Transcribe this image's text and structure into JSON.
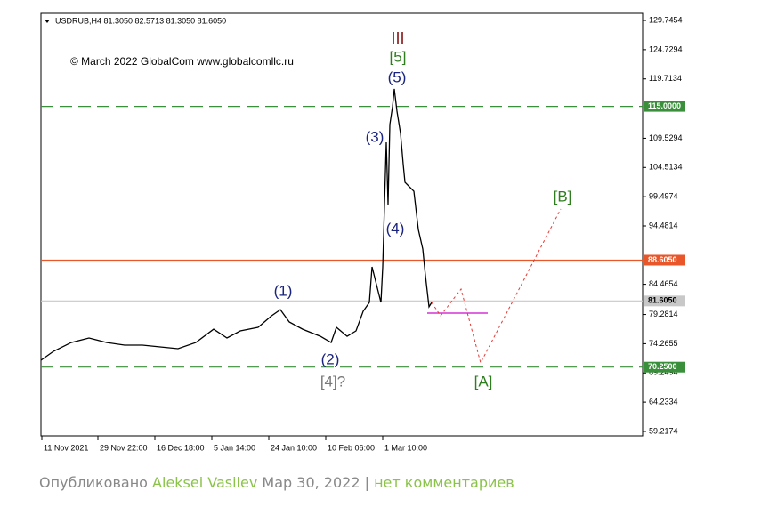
{
  "chart_data": {
    "type": "line",
    "title": "USDRUB,H4 81.3050 82.5713 81.3050 81.6050",
    "subtitle": "© March 2022 GlobalCom www.globalcomllc.ru",
    "xlim": [
      0,
      676
    ],
    "ylim": [
      58.45,
      130.97
    ],
    "xticks": [
      {
        "value": 1,
        "label": "11 Nov 2021"
      },
      {
        "value": 64,
        "label": "29 Nov 22:00"
      },
      {
        "value": 128,
        "label": "16 Dec 18:00"
      },
      {
        "value": 192,
        "label": "5 Jan 14:00"
      },
      {
        "value": 256,
        "label": "24 Jan 10:00"
      },
      {
        "value": 320,
        "label": "10 Feb 06:00"
      },
      {
        "value": 384,
        "label": "1 Mar 10:00"
      }
    ],
    "yticks": [
      129.7454,
      124.7294,
      119.7134,
      109.5294,
      104.5134,
      99.4974,
      94.4814,
      84.4654,
      79.2814,
      74.2655,
      69.2494,
      64.2334,
      59.2174
    ],
    "series": [
      {
        "color": "#000000",
        "style": "solid",
        "x": [
          0,
          14,
          34,
          54,
          74,
          94,
          114,
          134,
          154,
          174,
          194,
          209,
          224,
          244,
          259,
          269,
          279,
          294,
          314,
          326,
          332,
          344,
          354,
          362,
          369,
          372,
          377,
          382,
          384,
          388,
          390,
          392,
          395,
          397,
          400,
          404,
          407,
          409,
          414,
          419,
          424,
          429,
          432,
          436,
          439
        ],
        "values": [
          71.43,
          72.95,
          74.47,
          75.24,
          74.47,
          74.02,
          74.02,
          73.71,
          73.41,
          74.47,
          76.76,
          75.24,
          76.46,
          77.07,
          79.05,
          80.12,
          77.99,
          76.76,
          75.54,
          74.47,
          77.07,
          75.54,
          76.46,
          79.82,
          81.35,
          87.46,
          84.4,
          81.35,
          87.46,
          108.83,
          98.14,
          111.88,
          114.94,
          117.99,
          114.18,
          110.36,
          105.09,
          101.96,
          101.2,
          100.43,
          93.87,
          90.51,
          85.93,
          80.6,
          81.35
        ]
      },
      {
        "color": "#e53935",
        "style": "dotted",
        "x": [
          439,
          449,
          472,
          494,
          584
        ],
        "values": [
          81.35,
          79.06,
          83.64,
          70.97,
          97.38
        ]
      }
    ],
    "levels": [
      {
        "value": 115,
        "label": "115.0000",
        "color": "#3a8f3a",
        "text_color": "#ffffff",
        "style": "dashed"
      },
      {
        "value": 88.605,
        "label": "88.6050",
        "color": "#e8562a",
        "text_color": "#ffffff",
        "style": "solid"
      },
      {
        "value": 81.605,
        "label": "81.6050",
        "color": "#c8c8c8",
        "text_color": "#000000",
        "style": "solid"
      },
      {
        "value": 70.25,
        "label": "70.2500",
        "color": "#3a8f3a",
        "text_color": "#ffffff",
        "style": "dashed"
      }
    ],
    "segment": {
      "value": 79.52,
      "color": "#d633d6",
      "xrange": [
        434,
        502
      ]
    },
    "annotations": [
      {
        "text": "III",
        "color": "#8b1a1a"
      },
      {
        "text": "[5]",
        "color": "#2e7d1e"
      },
      {
        "text": "(5)",
        "color": "#1a237e"
      },
      {
        "text": "(3)",
        "color": "#1a237e"
      },
      {
        "text": "(4)",
        "color": "#1a237e"
      },
      {
        "text": "(1)",
        "color": "#1a237e"
      },
      {
        "text": "(2)",
        "color": "#1a237e"
      },
      {
        "text": "[4]?",
        "color": "#777777"
      },
      {
        "text": "[A]",
        "color": "#2e7d1e"
      },
      {
        "text": "[B]",
        "color": "#2e7d1e"
      }
    ]
  },
  "footer": {
    "published": "Опубликовано",
    "author": "Aleksei Vasilev",
    "date": "Мар 30, 2022",
    "separator": "|",
    "comments": "нет комментариев"
  }
}
